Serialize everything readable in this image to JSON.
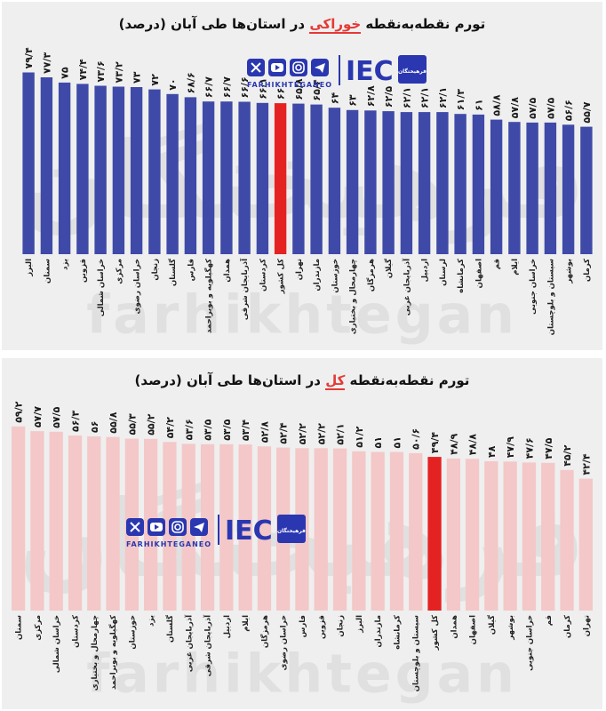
{
  "chart_data": [
    {
      "type": "bar",
      "title_parts": [
        "تورم نقطه‌به‌نقطه ",
        "خوراکی",
        " در استان‌ها طی آبان (درصد)"
      ],
      "categories": [
        "البرز",
        "سمنان",
        "یزد",
        "قزوین",
        "خراسان شمالی",
        "مرکزی",
        "خراسان رضوی",
        "زنجان",
        "گلستان",
        "فارس",
        "کهگیلویه و بویراحمد",
        "همدان",
        "آذربایجان شرقی",
        "کردستان",
        "کل کشور",
        "تهران",
        "مازندران",
        "خوزستان",
        "چهارمحال و بختیاری",
        "هرمزگان",
        "گیلان",
        "آذربایجان غربی",
        "اردبیل",
        "لرستان",
        "کرمانشاه",
        "اصفهان",
        "قم",
        "ایلام",
        "خراسان جنوبی",
        "سیستان و بلوچستان",
        "بوشهر",
        "کرمان"
      ],
      "value_labels": [
        "۷۹/۴",
        "۷۷/۳",
        "۷۵",
        "۷۴/۴",
        "۷۳/۶",
        "۷۳/۲",
        "۷۳",
        "۷۲",
        "۷۰",
        "۶۸/۶",
        "۶۶/۷",
        "۶۶/۷",
        "۶۶/۶",
        "۶۶/۱",
        "۶۶",
        "۶۵/۸",
        "۶۵/۴",
        "۶۴",
        "۶۳",
        "۶۲/۸",
        "۶۲/۵",
        "۶۲/۱",
        "۶۲/۱",
        "۶۲/۱",
        "۶۱/۳",
        "۶۱",
        "۵۸/۸",
        "۵۷/۸",
        "۵۷/۵",
        "۵۷/۵",
        "۵۶/۶",
        "۵۵/۷"
      ],
      "values": [
        79.4,
        77.3,
        75,
        74.4,
        73.6,
        73.2,
        73,
        72,
        70,
        68.6,
        66.7,
        66.7,
        66.6,
        66.1,
        66,
        65.8,
        65.4,
        64,
        63,
        62.8,
        62.5,
        62.1,
        62.1,
        62.1,
        61.3,
        61,
        58.8,
        57.8,
        57.5,
        57.5,
        56.6,
        55.7
      ],
      "highlight_category": "کل کشور",
      "ylim": [
        0,
        80
      ],
      "bar_color": "#3f4aa8",
      "highlight_color": "#e52222"
    },
    {
      "type": "bar",
      "title_parts": [
        "تورم نقطه‌به‌نقطه ",
        "کل",
        " در استان‌ها طی آبان (درصد)"
      ],
      "categories": [
        "سمنان",
        "مرکزی",
        "خراسان شمالی",
        "کردستان",
        "چهارمحال و بختیاری",
        "کهگیلویه و بویراحمد",
        "خوزستان",
        "یزد",
        "گلستان",
        "آذربایجان غربی",
        "آذربایجان شرقی",
        "اردبیل",
        "ایلام",
        "هرمزگان",
        "خراسان رضوی",
        "فارس",
        "قزوین",
        "زنجان",
        "البرز",
        "مازندران",
        "کرمانشاه",
        "سیستان و بلوچستان",
        "کل کشور",
        "همدان",
        "اصفهان",
        "گیلان",
        "بوشهر",
        "خراسان جنوبی",
        "قم",
        "کرمان",
        "تهران"
      ],
      "value_labels": [
        "۵۹/۲",
        "۵۷/۷",
        "۵۷/۵",
        "۵۶/۳",
        "۵۶",
        "۵۵/۸",
        "۵۵/۳",
        "۵۵/۲",
        "۵۴/۲",
        "۵۳/۶",
        "۵۳/۵",
        "۵۳/۵",
        "۵۳/۴",
        "۵۲/۸",
        "۵۲/۴",
        "۵۲/۲",
        "۵۲/۲",
        "۵۲/۱",
        "۵۱/۲",
        "۵۱",
        "۵۱",
        "۵۰/۶",
        "۴۹/۴",
        "۴۸/۹",
        "۴۸/۸",
        "۴۸",
        "۴۷/۹",
        "۴۷/۶",
        "۴۷/۵",
        "۴۵/۲",
        "۴۲/۴"
      ],
      "values": [
        59.2,
        57.7,
        57.5,
        56.3,
        56,
        55.8,
        55.3,
        55.2,
        54.2,
        53.6,
        53.5,
        53.5,
        53.4,
        52.8,
        52.4,
        52.2,
        52.2,
        52.1,
        51.2,
        51,
        51,
        50.6,
        49.4,
        48.9,
        48.8,
        48,
        47.9,
        47.6,
        47.5,
        45.2,
        42.4
      ],
      "highlight_category": "کل کشور",
      "ylim": [
        0,
        60
      ],
      "bar_color": "#f4c8c8",
      "highlight_color": "#e52222"
    }
  ],
  "brand": {
    "name": "FARHIKHTEGANEO",
    "logo_text": "IEC",
    "logo_badge": "فرهیختگان",
    "watermark_fa": "فرهیختگان",
    "watermark_en": "farhikhtegan"
  },
  "social_icons": [
    "x-icon",
    "youtube-icon",
    "instagram-icon",
    "telegram-icon"
  ]
}
